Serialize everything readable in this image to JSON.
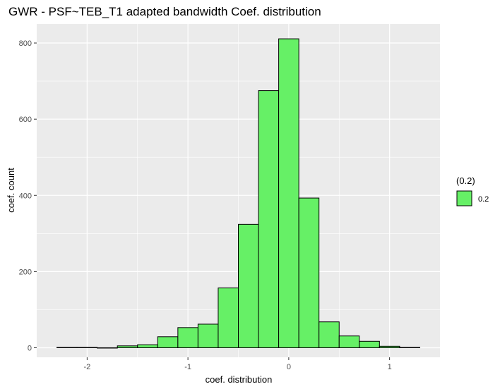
{
  "chart_data": {
    "type": "bar",
    "title": "GWR - PSF~TEB_T1 adapted bandwidth Coef. distribution",
    "xlabel": "coef. distribution",
    "ylabel": "coef. count",
    "xlim": [
      -2.5,
      1.5
    ],
    "ylim": [
      -25,
      850
    ],
    "x_ticks": [
      -2,
      -1,
      0,
      1
    ],
    "x_tick_labels": [
      "-2",
      "-1",
      "0",
      "1"
    ],
    "y_ticks": [
      0,
      200,
      400,
      600,
      800
    ],
    "y_tick_labels": [
      "0",
      "200",
      "400",
      "600",
      "800"
    ],
    "grid": true,
    "bin_width": 0.2,
    "bins": [
      {
        "start": -2.3,
        "end": -2.1,
        "count": 1
      },
      {
        "start": -2.1,
        "end": -1.9,
        "count": 1
      },
      {
        "start": -1.9,
        "end": -1.7,
        "count": 0
      },
      {
        "start": -1.7,
        "end": -1.5,
        "count": 5
      },
      {
        "start": -1.5,
        "end": -1.3,
        "count": 8
      },
      {
        "start": -1.3,
        "end": -1.1,
        "count": 29
      },
      {
        "start": -1.1,
        "end": -0.9,
        "count": 53
      },
      {
        "start": -0.9,
        "end": -0.7,
        "count": 62
      },
      {
        "start": -0.7,
        "end": -0.5,
        "count": 157
      },
      {
        "start": -0.5,
        "end": -0.3,
        "count": 324
      },
      {
        "start": -0.3,
        "end": -0.1,
        "count": 675
      },
      {
        "start": -0.1,
        "end": 0.1,
        "count": 811
      },
      {
        "start": 0.1,
        "end": 0.3,
        "count": 393
      },
      {
        "start": 0.3,
        "end": 0.5,
        "count": 68
      },
      {
        "start": 0.5,
        "end": 0.7,
        "count": 31
      },
      {
        "start": 0.7,
        "end": 0.9,
        "count": 17
      },
      {
        "start": 0.9,
        "end": 1.1,
        "count": 4
      },
      {
        "start": 1.1,
        "end": 1.3,
        "count": 1
      }
    ],
    "legend": {
      "title": "(0.2)",
      "items": [
        {
          "label": "0.2",
          "color": "#66f066"
        }
      ],
      "position": "right"
    },
    "colors": {
      "panel_background": "#ebebeb",
      "grid_major": "#ffffff",
      "bar_fill": "#66f066",
      "bar_stroke": "#000000"
    }
  }
}
